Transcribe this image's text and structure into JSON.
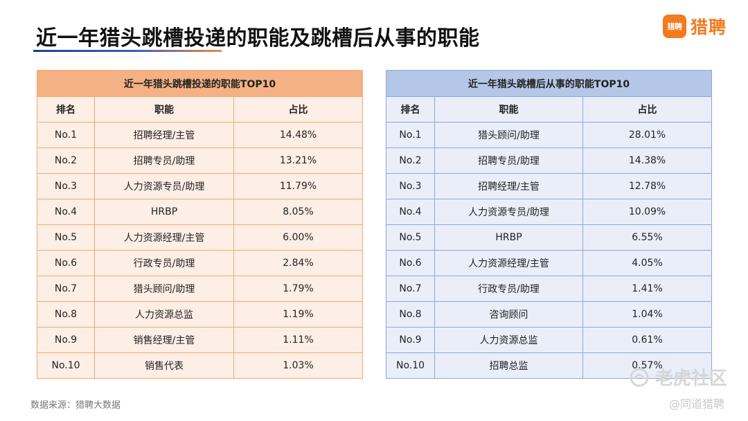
{
  "header": {
    "title": "近一年猎头跳槽投递的职能及跳槽后从事的职能",
    "brand_badge": "猎聘",
    "brand_name": "猎聘",
    "brand_color": "#f47a20"
  },
  "left_table": {
    "caption": "近一年猎头跳槽投递的职能TOP10",
    "columns": [
      "排名",
      "职能",
      "占比"
    ],
    "rows": [
      [
        "No.1",
        "招聘经理/主管",
        "14.48%"
      ],
      [
        "No.2",
        "招聘专员/助理",
        "13.21%"
      ],
      [
        "No.3",
        "人力资源专员/助理",
        "11.79%"
      ],
      [
        "No.4",
        "HRBP",
        "8.05%"
      ],
      [
        "No.5",
        "人力资源经理/主管",
        "6.00%"
      ],
      [
        "No.6",
        "行政专员/助理",
        "2.84%"
      ],
      [
        "No.7",
        "猎头顾问/助理",
        "1.79%"
      ],
      [
        "No.8",
        "人力资源总监",
        "1.19%"
      ],
      [
        "No.9",
        "销售经理/主管",
        "1.11%"
      ],
      [
        "No.10",
        "销售代表",
        "1.03%"
      ]
    ],
    "header_color": "#f4b183",
    "cell_color": "#fdeee6"
  },
  "right_table": {
    "caption": "近一年猎头跳槽后从事的职能TOP10",
    "columns": [
      "排名",
      "职能",
      "占比"
    ],
    "rows": [
      [
        "No.1",
        "猎头顾问/助理",
        "28.01%"
      ],
      [
        "No.2",
        "招聘专员/助理",
        "14.38%"
      ],
      [
        "No.3",
        "招聘经理/主管",
        "12.78%"
      ],
      [
        "No.4",
        "人力资源专员/助理",
        "10.09%"
      ],
      [
        "No.5",
        "HRBP",
        "6.55%"
      ],
      [
        "No.6",
        "人力资源经理/主管",
        "4.05%"
      ],
      [
        "No.7",
        "行政专员/助理",
        "1.41%"
      ],
      [
        "No.8",
        "咨询顾问",
        "1.04%"
      ],
      [
        "No.9",
        "人力资源总监",
        "0.61%"
      ],
      [
        "No.10",
        "招聘总监",
        "0.57%"
      ]
    ],
    "header_color": "#b4c7e7",
    "cell_color": "#e9eef8"
  },
  "footer": {
    "source": "数据来源：猎聘大数据",
    "watermark": "老虎社区",
    "watermark_handle": "@同道猎聘"
  }
}
